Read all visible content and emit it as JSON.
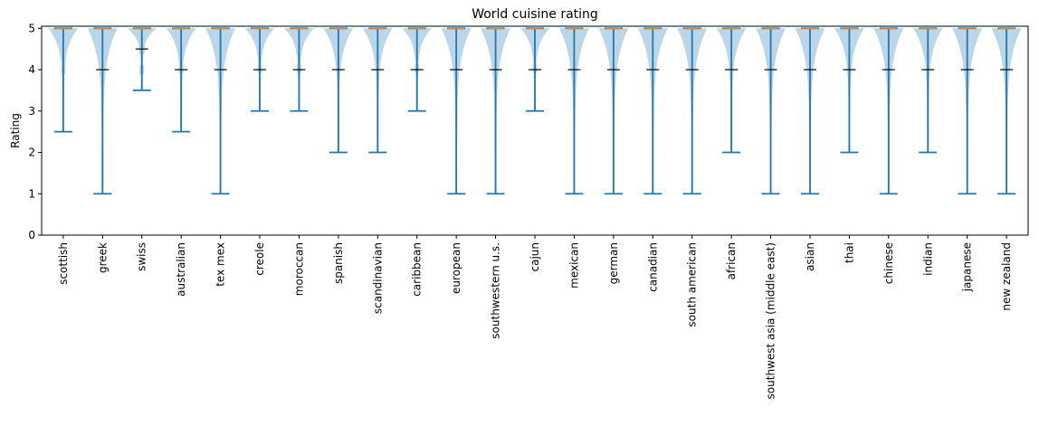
{
  "chart_data": {
    "type": "violin",
    "title": "World cuisine rating",
    "xlabel": "",
    "ylabel": "Rating",
    "ylim": [
      0,
      5.05
    ],
    "yticks": [
      "0",
      "1",
      "2",
      "3",
      "4",
      "5"
    ],
    "grid": false,
    "colors": {
      "body": "#1f77b4",
      "median": "#ff7f0e",
      "quartile": "#000000"
    },
    "categories": [
      "scottish",
      "greek",
      "swiss",
      "australian",
      "tex mex",
      "creole",
      "moroccan",
      "spanish",
      "scandinavian",
      "caribbean",
      "european",
      "southwestern u.s.",
      "cajun",
      "mexican",
      "german",
      "canadian",
      "south american",
      "african",
      "southwest asia (middle east)",
      "asian",
      "thai",
      "chinese",
      "indian",
      "japanese",
      "new zealand"
    ],
    "series": [
      {
        "category": "scottish",
        "min": 2.5,
        "max": 5,
        "median": 5,
        "q1": 5,
        "q3": 5
      },
      {
        "category": "greek",
        "min": 1,
        "max": 5,
        "median": 5,
        "q1": 4,
        "q3": 5
      },
      {
        "category": "swiss",
        "min": 3.5,
        "max": 5,
        "median": 5,
        "q1": 4.5,
        "q3": 5
      },
      {
        "category": "australian",
        "min": 2.5,
        "max": 5,
        "median": 5,
        "q1": 4,
        "q3": 5
      },
      {
        "category": "tex mex",
        "min": 1,
        "max": 5,
        "median": 5,
        "q1": 4,
        "q3": 5
      },
      {
        "category": "creole",
        "min": 3,
        "max": 5,
        "median": 5,
        "q1": 4,
        "q3": 5
      },
      {
        "category": "moroccan",
        "min": 3,
        "max": 5,
        "median": 5,
        "q1": 4,
        "q3": 5
      },
      {
        "category": "spanish",
        "min": 2,
        "max": 5,
        "median": 5,
        "q1": 4,
        "q3": 5
      },
      {
        "category": "scandinavian",
        "min": 2,
        "max": 5,
        "median": 5,
        "q1": 4,
        "q3": 5
      },
      {
        "category": "caribbean",
        "min": 3,
        "max": 5,
        "median": 5,
        "q1": 4,
        "q3": 5
      },
      {
        "category": "european",
        "min": 1,
        "max": 5,
        "median": 5,
        "q1": 4,
        "q3": 5
      },
      {
        "category": "southwestern u.s.",
        "min": 1,
        "max": 5,
        "median": 5,
        "q1": 4,
        "q3": 5
      },
      {
        "category": "cajun",
        "min": 3,
        "max": 5,
        "median": 5,
        "q1": 4,
        "q3": 5
      },
      {
        "category": "mexican",
        "min": 1,
        "max": 5,
        "median": 5,
        "q1": 4,
        "q3": 5
      },
      {
        "category": "german",
        "min": 1,
        "max": 5,
        "median": 5,
        "q1": 4,
        "q3": 5
      },
      {
        "category": "canadian",
        "min": 1,
        "max": 5,
        "median": 5,
        "q1": 4,
        "q3": 5
      },
      {
        "category": "south american",
        "min": 1,
        "max": 5,
        "median": 5,
        "q1": 4,
        "q3": 5
      },
      {
        "category": "african",
        "min": 2,
        "max": 5,
        "median": 5,
        "q1": 4,
        "q3": 5
      },
      {
        "category": "southwest asia (middle east)",
        "min": 1,
        "max": 5,
        "median": 5,
        "q1": 4,
        "q3": 5
      },
      {
        "category": "asian",
        "min": 1,
        "max": 5,
        "median": 5,
        "q1": 4,
        "q3": 5
      },
      {
        "category": "thai",
        "min": 2,
        "max": 5,
        "median": 5,
        "q1": 4,
        "q3": 5
      },
      {
        "category": "chinese",
        "min": 1,
        "max": 5,
        "median": 5,
        "q1": 4,
        "q3": 5
      },
      {
        "category": "indian",
        "min": 2,
        "max": 5,
        "median": 5,
        "q1": 4,
        "q3": 5
      },
      {
        "category": "japanese",
        "min": 1,
        "max": 5,
        "median": 5,
        "q1": 4,
        "q3": 5
      },
      {
        "category": "new zealand",
        "min": 1,
        "max": 5,
        "median": 5,
        "q1": 4,
        "q3": 5
      }
    ]
  }
}
